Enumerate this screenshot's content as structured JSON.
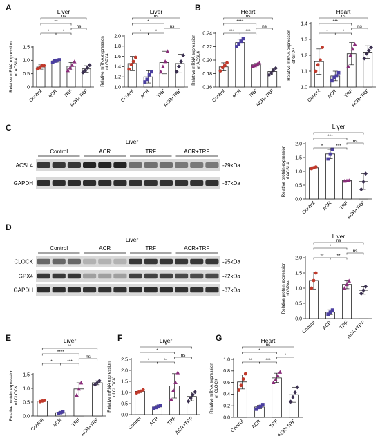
{
  "panels": {
    "A": "A",
    "B": "B",
    "C": "C",
    "D": "D",
    "E": "E",
    "F": "F",
    "G": "G"
  },
  "colors": {
    "control": "#c0392b",
    "acr": "#4b3fa0",
    "trf": "#8a2c7a",
    "acr_trf": "#3a2f4f",
    "axis": "#222222",
    "band": "#1a1a1a"
  },
  "western_C": {
    "title": "Liver",
    "groups": [
      "Control",
      "ACR",
      "TRF",
      "ACR+TRF"
    ],
    "rows": [
      {
        "label": "ACSL4",
        "size": "-79kDa"
      },
      {
        "label": "GAPDH",
        "size": "-37kDa"
      }
    ]
  },
  "western_D": {
    "title": "Liver",
    "groups": [
      "Control",
      "ACR",
      "TRF",
      "ACR+TRF"
    ],
    "rows": [
      {
        "label": "CLOCK",
        "size": "-95kDa"
      },
      {
        "label": "GPX4",
        "size": "-22kDa"
      },
      {
        "label": "GAPDH",
        "size": "-37kDa"
      }
    ]
  },
  "chart_data": [
    {
      "id": "A1",
      "type": "bar",
      "title": "Liver",
      "ylabel": "Relative mRNA expression of ACSL4",
      "categories": [
        "Control",
        "ACR",
        "TRF",
        "ACR+TRF"
      ],
      "ylim": [
        0,
        1.5
      ],
      "ticks": [
        0,
        0.5,
        1.0,
        1.5
      ],
      "tick_labels": [
        "0",
        "0.5",
        "1.0",
        "1.5"
      ],
      "values": [
        0.75,
        0.98,
        0.78,
        0.68
      ],
      "errors": [
        0.08,
        0.05,
        0.14,
        0.12
      ],
      "points": [
        [
          0.68,
          0.72,
          0.8,
          0.8
        ],
        [
          0.92,
          0.97,
          1.0,
          1.02
        ],
        [
          0.62,
          0.72,
          0.82,
          0.95
        ],
        [
          0.55,
          0.62,
          0.72,
          0.82
        ]
      ],
      "sig": [
        {
          "a": 0,
          "b": 3,
          "label": "ns"
        },
        {
          "a": 0,
          "b": 2,
          "label": "**"
        },
        {
          "a": 2,
          "b": 3,
          "label": "ns"
        },
        {
          "a": 0,
          "b": 1,
          "label": "*"
        },
        {
          "a": 1,
          "b": 2,
          "label": "*"
        }
      ]
    },
    {
      "id": "A2",
      "type": "bar",
      "title": "Liver",
      "ylabel": "Relative mRNA expression of GPX4",
      "categories": [
        "Control",
        "ACR",
        "TRF",
        "ACR+TRF"
      ],
      "ylim": [
        1.0,
        2.0
      ],
      "ticks": [
        1.0,
        1.2,
        1.4,
        1.6,
        1.8,
        2.0
      ],
      "tick_labels": [
        "1.0",
        "1.2",
        "1.4",
        "1.6",
        "1.8",
        "2.0"
      ],
      "values": [
        1.46,
        1.2,
        1.48,
        1.46
      ],
      "errors": [
        0.14,
        0.12,
        0.22,
        0.18
      ],
      "points": [
        [
          1.35,
          1.44,
          1.5,
          1.58
        ],
        [
          1.1,
          1.15,
          1.24,
          1.3
        ],
        [
          1.3,
          1.4,
          1.5,
          1.7
        ],
        [
          1.3,
          1.4,
          1.5,
          1.62
        ]
      ],
      "sig": [
        {
          "a": 0,
          "b": 3,
          "label": "ns"
        },
        {
          "a": 0,
          "b": 2,
          "label": "*"
        },
        {
          "a": 2,
          "b": 3,
          "label": "ns"
        },
        {
          "a": 0,
          "b": 1,
          "label": "*"
        },
        {
          "a": 1,
          "b": 2,
          "label": "*"
        }
      ]
    },
    {
      "id": "B1",
      "type": "bar",
      "title": "Heart",
      "ylabel": "Relative mRNA expression of ACSL4",
      "categories": [
        "Control",
        "ACR",
        "TRF",
        "ACR+TRF"
      ],
      "ylim": [
        0.16,
        0.24
      ],
      "ticks": [
        0.16,
        0.18,
        0.2,
        0.22,
        0.24
      ],
      "tick_labels": [
        "0.16",
        "0.18",
        "0.20",
        "0.22",
        "0.24"
      ],
      "values": [
        0.19,
        0.226,
        0.193,
        0.183
      ],
      "errors": [
        0.006,
        0.005,
        0.002,
        0.005
      ],
      "points": [
        [
          0.184,
          0.189,
          0.192,
          0.196
        ],
        [
          0.22,
          0.224,
          0.228,
          0.232
        ],
        [
          0.191,
          0.192,
          0.194,
          0.196
        ],
        [
          0.178,
          0.181,
          0.185,
          0.188
        ]
      ],
      "sig": [
        {
          "a": 0,
          "b": 3,
          "label": "ns"
        },
        {
          "a": 0,
          "b": 2,
          "label": "****"
        },
        {
          "a": 2,
          "b": 3,
          "label": "ns"
        },
        {
          "a": 0,
          "b": 1,
          "label": "***"
        },
        {
          "a": 1,
          "b": 2,
          "label": "***"
        }
      ]
    },
    {
      "id": "B2",
      "type": "bar",
      "title": "Heart",
      "ylabel": "Relative mRNA expression of GPX4",
      "categories": [
        "Control",
        "ACR",
        "TRF",
        "ACR+TRF"
      ],
      "ylim": [
        1.0,
        1.4
      ],
      "ticks": [
        1.0,
        1.1,
        1.2,
        1.3,
        1.4
      ],
      "tick_labels": [
        "1.0",
        "1.1",
        "1.2",
        "1.3",
        "1.4"
      ],
      "values": [
        1.16,
        1.07,
        1.21,
        1.22
      ],
      "errors": [
        0.08,
        0.03,
        0.07,
        0.04
      ],
      "points": [
        [
          1.1,
          1.14,
          1.17,
          1.25
        ],
        [
          1.04,
          1.06,
          1.07,
          1.09
        ],
        [
          1.13,
          1.2,
          1.24,
          1.27
        ],
        [
          1.18,
          1.21,
          1.23,
          1.25
        ]
      ],
      "sig": [
        {
          "a": 0,
          "b": 3,
          "label": "ns"
        },
        {
          "a": 0,
          "b": 2,
          "label": "***"
        },
        {
          "a": 2,
          "b": 3,
          "label": "ns"
        },
        {
          "a": 0,
          "b": 1,
          "label": "*"
        },
        {
          "a": 1,
          "b": 2,
          "label": "*"
        }
      ]
    },
    {
      "id": "C",
      "type": "bar",
      "title": "Liver",
      "ylabel": "Relative protein expression of ACSL4",
      "categories": [
        "Control",
        "ACR",
        "TRF",
        "ACR+TRF"
      ],
      "ylim": [
        0,
        2.0
      ],
      "ticks": [
        0,
        0.5,
        1.0,
        1.5,
        2.0
      ],
      "tick_labels": [
        "0.0",
        "0.5",
        "1.0",
        "1.5",
        "2.0"
      ],
      "values": [
        1.13,
        1.63,
        0.66,
        0.63
      ],
      "errors": [
        0.04,
        0.17,
        0.02,
        0.28
      ],
      "points": [
        [
          1.1,
          1.13,
          1.16
        ],
        [
          1.45,
          1.62,
          1.8
        ],
        [
          0.65,
          0.66,
          0.67
        ],
        [
          0.35,
          0.62,
          0.92
        ]
      ],
      "sig": [
        {
          "a": 0,
          "b": 3,
          "label": "*"
        },
        {
          "a": 0,
          "b": 2,
          "label": "***"
        },
        {
          "a": 2,
          "b": 3,
          "label": "ns"
        },
        {
          "a": 0,
          "b": 1,
          "label": "*"
        },
        {
          "a": 1,
          "b": 2,
          "label": "***"
        }
      ]
    },
    {
      "id": "D",
      "type": "bar",
      "title": "Liver",
      "ylabel": "Relative protein expression of GPX4",
      "categories": [
        "Control",
        "ACR",
        "TRF",
        "ACR+TRF"
      ],
      "ylim": [
        0,
        2.0
      ],
      "ticks": [
        0,
        0.5,
        1.0,
        1.5,
        2.0
      ],
      "tick_labels": [
        "0.0",
        "0.5",
        "1.0",
        "1.5",
        "2.0"
      ],
      "values": [
        1.25,
        0.21,
        1.12,
        0.93
      ],
      "errors": [
        0.28,
        0.08,
        0.14,
        0.13
      ],
      "points": [
        [
          1.0,
          1.25,
          1.5
        ],
        [
          0.14,
          0.21,
          0.28
        ],
        [
          1.0,
          1.12,
          1.24
        ],
        [
          0.82,
          0.93,
          1.05
        ]
      ],
      "sig": [
        {
          "a": 0,
          "b": 3,
          "label": "ns"
        },
        {
          "a": 0,
          "b": 2,
          "label": "*"
        },
        {
          "a": 2,
          "b": 3,
          "label": "ns"
        },
        {
          "a": 0,
          "b": 1,
          "label": "**"
        },
        {
          "a": 1,
          "b": 2,
          "label": "**"
        }
      ]
    },
    {
      "id": "E",
      "type": "bar",
      "title": "Liver",
      "ylabel": "Relative protein expression of CLOCK",
      "categories": [
        "Control",
        "ACR",
        "TRF",
        "ACR+TRF"
      ],
      "ylim": [
        0,
        1.5
      ],
      "ticks": [
        0,
        0.5,
        1.0,
        1.5
      ],
      "tick_labels": [
        "0.0",
        "0.5",
        "1.0",
        "1.5"
      ],
      "values": [
        0.54,
        0.12,
        0.98,
        1.2
      ],
      "errors": [
        0.02,
        0.03,
        0.22,
        0.07
      ],
      "points": [
        [
          0.52,
          0.54,
          0.56
        ],
        [
          0.09,
          0.12,
          0.15
        ],
        [
          0.76,
          0.98,
          1.2
        ],
        [
          1.13,
          1.2,
          1.27
        ]
      ],
      "sig": [
        {
          "a": 0,
          "b": 3,
          "label": "**"
        },
        {
          "a": 0,
          "b": 2,
          "label": "****"
        },
        {
          "a": 2,
          "b": 3,
          "label": "ns"
        },
        {
          "a": 0,
          "b": 1,
          "label": "*"
        },
        {
          "a": 1,
          "b": 2,
          "label": "***"
        }
      ]
    },
    {
      "id": "F",
      "type": "bar",
      "title": "Liver",
      "ylabel": "Relative mRNA expression of CLOCK",
      "categories": [
        "Control",
        "ACR",
        "TRF",
        "ACR+TRF"
      ],
      "ylim": [
        0,
        2.5
      ],
      "ticks": [
        0,
        0.5,
        1.0,
        1.5,
        2.0,
        2.5
      ],
      "tick_labels": [
        "0.0",
        "0.5",
        "1.0",
        "1.5",
        "2.0",
        "2.5"
      ],
      "values": [
        1.05,
        0.35,
        1.3,
        0.82
      ],
      "errors": [
        0.06,
        0.06,
        0.55,
        0.2
      ],
      "points": [
        [
          0.98,
          1.02,
          1.06,
          1.12
        ],
        [
          0.28,
          0.32,
          0.38,
          0.42
        ],
        [
          0.7,
          1.1,
          1.45,
          1.9
        ],
        [
          0.6,
          0.75,
          0.9,
          1.02
        ]
      ],
      "sig": [
        {
          "a": 0,
          "b": 3,
          "label": "*"
        },
        {
          "a": 0,
          "b": 2,
          "label": "*"
        },
        {
          "a": 2,
          "b": 3,
          "label": "ns"
        },
        {
          "a": 0,
          "b": 1,
          "label": "*"
        },
        {
          "a": 1,
          "b": 2,
          "label": "**"
        }
      ]
    },
    {
      "id": "G",
      "type": "bar",
      "title": "Heart",
      "ylabel": "Relative mRNA expression of CLOCK",
      "categories": [
        "Control",
        "ACR",
        "TRF",
        "ACR+TRF"
      ],
      "ylim": [
        0,
        1.0
      ],
      "ticks": [
        0,
        0.2,
        0.4,
        0.6,
        0.8,
        1.0
      ],
      "tick_labels": [
        "0.0",
        "0.2",
        "0.4",
        "0.6",
        "0.8",
        "1.0"
      ],
      "values": [
        0.61,
        0.18,
        0.68,
        0.39
      ],
      "errors": [
        0.12,
        0.03,
        0.08,
        0.13
      ],
      "points": [
        [
          0.47,
          0.55,
          0.66,
          0.75
        ],
        [
          0.14,
          0.17,
          0.19,
          0.22
        ],
        [
          0.6,
          0.65,
          0.72,
          0.78
        ],
        [
          0.27,
          0.35,
          0.43,
          0.52
        ]
      ],
      "sig": [
        {
          "a": 0,
          "b": 3,
          "label": "ns"
        },
        {
          "a": 0,
          "b": 2,
          "label": "*"
        },
        {
          "a": 2,
          "b": 3,
          "label": "*"
        },
        {
          "a": 0,
          "b": 1,
          "label": "**"
        },
        {
          "a": 1,
          "b": 2,
          "label": "***"
        }
      ]
    }
  ]
}
